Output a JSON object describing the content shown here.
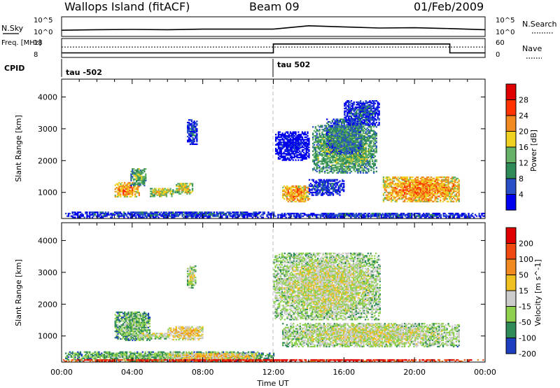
{
  "chart_data": [
    {
      "type": "line",
      "panel": "summary-n-sky-n-search",
      "ylabel_left": "N.Sky",
      "ylabel_right": "N.Search",
      "yticks_left": [
        "10^5",
        "10^0"
      ],
      "yticks_right": [
        "10^5",
        "10^0"
      ],
      "x": [
        0,
        2,
        4,
        6,
        8,
        10,
        12,
        13,
        14,
        16,
        18,
        20,
        22,
        24
      ],
      "series": [
        {
          "values": [
            1.2,
            1.4,
            1.5,
            1.4,
            1.6,
            1.6,
            1.6,
            2.2,
            2.8,
            2.4,
            2.0,
            2.1,
            1.8,
            1.4
          ]
        }
      ]
    },
    {
      "type": "line",
      "panel": "summary-frequency-nave",
      "ylabel_left": "Freq. [MHz]",
      "ylabel_right": "Nave",
      "yticks_left": [
        "18",
        "8"
      ],
      "yticks_right": [
        "60",
        "0"
      ],
      "ylim": [
        8,
        18
      ],
      "x": [
        0,
        12,
        12,
        22,
        22,
        24
      ],
      "series": [
        {
          "name": "Freq.",
          "values": [
            10.3,
            10.3,
            15.6,
            15.6,
            10.3,
            10.3
          ]
        }
      ],
      "reference_line": 13.8
    },
    {
      "type": "table",
      "panel": "cpid",
      "label": "CPID",
      "segments": [
        {
          "start": 0,
          "end": 12,
          "text": "tau -502"
        },
        {
          "start": 12,
          "end": 24,
          "text": "tau 502"
        }
      ]
    },
    {
      "type": "heatmap",
      "panel": "power",
      "ylabel": "Slant Range [km]",
      "ylim": [
        180,
        4560
      ],
      "yticks": [
        1000,
        2000,
        3000,
        4000
      ],
      "xlim": [
        0,
        24
      ],
      "colorbar": {
        "label": "Power [dB]",
        "ticks": [
          "4",
          "8",
          "12",
          "16",
          "20",
          "24",
          "28"
        ],
        "colors": [
          "#0000ee",
          "#2a50c8",
          "#2e8b57",
          "#66b266",
          "#f0d020",
          "#f08a20",
          "#ff3300",
          "#e00000"
        ]
      },
      "regions": [
        {
          "t0": 3.0,
          "t1": 4.4,
          "r0": 850,
          "r1": 1300,
          "level": 5
        },
        {
          "t0": 3.9,
          "t1": 4.8,
          "r0": 1200,
          "r1": 1750,
          "level": 3
        },
        {
          "t0": 5.0,
          "t1": 6.3,
          "r0": 860,
          "r1": 1140,
          "level": 4
        },
        {
          "t0": 6.4,
          "t1": 7.4,
          "r0": 940,
          "r1": 1300,
          "level": 4
        },
        {
          "t0": 7.1,
          "t1": 7.7,
          "r0": 2500,
          "r1": 3300,
          "level": 1
        },
        {
          "t0": 0.2,
          "t1": 12.0,
          "r0": 200,
          "r1": 400,
          "level": 1
        },
        {
          "t0": 12.1,
          "t1": 14.0,
          "r0": 2000,
          "r1": 2900,
          "level": 0
        },
        {
          "t0": 12.5,
          "t1": 14.0,
          "r0": 700,
          "r1": 1220,
          "level": 5
        },
        {
          "t0": 14.2,
          "t1": 17.8,
          "r0": 1600,
          "r1": 3100,
          "level": 3
        },
        {
          "t0": 15.0,
          "t1": 17.0,
          "r0": 2200,
          "r1": 3300,
          "level": 2
        },
        {
          "t0": 14.0,
          "t1": 16.0,
          "r0": 900,
          "r1": 1400,
          "level": 1
        },
        {
          "t0": 18.2,
          "t1": 22.5,
          "r0": 700,
          "r1": 1500,
          "level": 5
        },
        {
          "t0": 16.0,
          "t1": 18.0,
          "r0": 3100,
          "r1": 3900,
          "level": 1
        },
        {
          "t0": 12.0,
          "t1": 24.0,
          "r0": 200,
          "r1": 340,
          "level": 1
        }
      ]
    },
    {
      "type": "heatmap",
      "panel": "velocity",
      "ylabel": "Slant Range [km]",
      "ylim": [
        180,
        4560
      ],
      "yticks": [
        1000,
        2000,
        3000,
        4000
      ],
      "xlim": [
        0,
        24
      ],
      "xticks": [
        "00:00",
        "04:00",
        "08:00",
        "12:00",
        "16:00",
        "20:00",
        "00:00"
      ],
      "xlabel": "Time UT",
      "colorbar": {
        "label": "Velocity [m s^-1]",
        "ticks": [
          "200",
          "100",
          "50",
          "15",
          "-15",
          "-50",
          "-100",
          "-200"
        ],
        "colors": [
          "#1c3fbf",
          "#2e8b57",
          "#8fd14f",
          "#cccccc",
          "#f0c020",
          "#f08a20",
          "#f04a10",
          "#e00000"
        ]
      },
      "regions": [
        {
          "t0": 3.0,
          "t1": 5.0,
          "r0": 850,
          "r1": 1750,
          "level": 2
        },
        {
          "t0": 4.0,
          "t1": 6.0,
          "r0": 900,
          "r1": 1100,
          "level": 3
        },
        {
          "t0": 6.0,
          "t1": 8.0,
          "r0": 870,
          "r1": 1300,
          "level": 4
        },
        {
          "t0": 7.1,
          "t1": 7.6,
          "r0": 2500,
          "r1": 3200,
          "level": 3
        },
        {
          "t0": 0.2,
          "t1": 12.0,
          "r0": 200,
          "r1": 500,
          "level": 2
        },
        {
          "t0": 6.0,
          "t1": 11.0,
          "r0": 260,
          "r1": 460,
          "level": 4
        },
        {
          "t0": 12.0,
          "t1": 18.0,
          "r0": 1500,
          "r1": 3600,
          "level": 3
        },
        {
          "t0": 12.5,
          "t1": 22.5,
          "r0": 650,
          "r1": 1400,
          "level": 3
        },
        {
          "t0": 0.0,
          "t1": 24.0,
          "r0": 190,
          "r1": 260,
          "level": 7
        }
      ]
    }
  ],
  "header": {
    "station": "Wallops Island (fitACF)",
    "beam": "Beam 09",
    "date": "01/Feb/2009"
  }
}
